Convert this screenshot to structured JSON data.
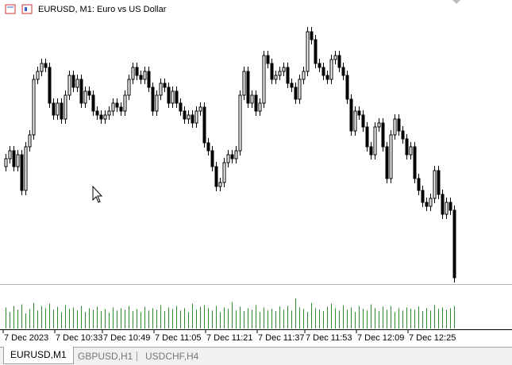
{
  "chart_data": {
    "type": "candlestick",
    "title": "EURUSD, M1:  Euro vs US Dollar",
    "ylim": [
      0,
      340
    ],
    "ohlc": [
      [
        150,
        166,
        144,
        160
      ],
      [
        160,
        176,
        154,
        170
      ],
      [
        170,
        176,
        144,
        150
      ],
      [
        150,
        171,
        144,
        165
      ],
      [
        165,
        171,
        114,
        120
      ],
      [
        120,
        181,
        114,
        175
      ],
      [
        175,
        196,
        169,
        190
      ],
      [
        190,
        266,
        184,
        260
      ],
      [
        260,
        276,
        254,
        270
      ],
      [
        270,
        286,
        264,
        280
      ],
      [
        280,
        286,
        269,
        275
      ],
      [
        275,
        281,
        224,
        230
      ],
      [
        230,
        236,
        209,
        215
      ],
      [
        215,
        236,
        209,
        230
      ],
      [
        230,
        236,
        204,
        210
      ],
      [
        210,
        246,
        204,
        240
      ],
      [
        240,
        271,
        234,
        265
      ],
      [
        265,
        271,
        244,
        250
      ],
      [
        250,
        266,
        244,
        260
      ],
      [
        260,
        266,
        224,
        230
      ],
      [
        230,
        251,
        224,
        245
      ],
      [
        245,
        251,
        234,
        240
      ],
      [
        240,
        246,
        214,
        220
      ],
      [
        220,
        226,
        209,
        215
      ],
      [
        215,
        221,
        204,
        210
      ],
      [
        210,
        221,
        204,
        215
      ],
      [
        215,
        226,
        209,
        220
      ],
      [
        220,
        236,
        214,
        230
      ],
      [
        230,
        236,
        219,
        225
      ],
      [
        225,
        231,
        214,
        220
      ],
      [
        220,
        246,
        214,
        240
      ],
      [
        240,
        266,
        234,
        260
      ],
      [
        260,
        281,
        254,
        275
      ],
      [
        275,
        281,
        259,
        265
      ],
      [
        265,
        271,
        254,
        260
      ],
      [
        260,
        276,
        254,
        270
      ],
      [
        270,
        276,
        244,
        250
      ],
      [
        250,
        256,
        214,
        220
      ],
      [
        220,
        246,
        214,
        240
      ],
      [
        240,
        261,
        234,
        255
      ],
      [
        255,
        261,
        244,
        250
      ],
      [
        250,
        256,
        224,
        230
      ],
      [
        230,
        251,
        224,
        245
      ],
      [
        245,
        251,
        224,
        230
      ],
      [
        230,
        236,
        214,
        220
      ],
      [
        220,
        226,
        204,
        210
      ],
      [
        210,
        221,
        204,
        215
      ],
      [
        215,
        221,
        199,
        205
      ],
      [
        205,
        226,
        199,
        220
      ],
      [
        220,
        231,
        214,
        225
      ],
      [
        225,
        231,
        174,
        180
      ],
      [
        180,
        186,
        164,
        170
      ],
      [
        170,
        176,
        144,
        150
      ],
      [
        150,
        156,
        119,
        125
      ],
      [
        125,
        136,
        119,
        130
      ],
      [
        130,
        161,
        124,
        155
      ],
      [
        155,
        171,
        149,
        165
      ],
      [
        165,
        171,
        154,
        160
      ],
      [
        160,
        176,
        154,
        170
      ],
      [
        170,
        246,
        164,
        240
      ],
      [
        240,
        276,
        234,
        270
      ],
      [
        270,
        276,
        224,
        230
      ],
      [
        230,
        246,
        224,
        240
      ],
      [
        240,
        246,
        214,
        220
      ],
      [
        220,
        236,
        214,
        230
      ],
      [
        230,
        296,
        224,
        290
      ],
      [
        290,
        296,
        274,
        280
      ],
      [
        280,
        286,
        254,
        260
      ],
      [
        260,
        271,
        254,
        265
      ],
      [
        265,
        276,
        259,
        270
      ],
      [
        270,
        281,
        264,
        275
      ],
      [
        275,
        281,
        249,
        255
      ],
      [
        255,
        261,
        244,
        250
      ],
      [
        250,
        256,
        229,
        235
      ],
      [
        235,
        266,
        229,
        260
      ],
      [
        260,
        276,
        254,
        270
      ],
      [
        270,
        326,
        264,
        320
      ],
      [
        320,
        326,
        304,
        310
      ],
      [
        310,
        316,
        274,
        280
      ],
      [
        280,
        286,
        269,
        275
      ],
      [
        275,
        281,
        259,
        265
      ],
      [
        265,
        271,
        254,
        260
      ],
      [
        260,
        291,
        254,
        285
      ],
      [
        285,
        296,
        279,
        290
      ],
      [
        290,
        296,
        269,
        275
      ],
      [
        275,
        281,
        259,
        265
      ],
      [
        265,
        271,
        229,
        235
      ],
      [
        235,
        241,
        189,
        195
      ],
      [
        195,
        226,
        189,
        220
      ],
      [
        220,
        226,
        209,
        215
      ],
      [
        215,
        221,
        194,
        200
      ],
      [
        200,
        206,
        169,
        175
      ],
      [
        175,
        181,
        159,
        165
      ],
      [
        165,
        206,
        159,
        200
      ],
      [
        200,
        211,
        194,
        205
      ],
      [
        205,
        211,
        169,
        175
      ],
      [
        175,
        181,
        129,
        135
      ],
      [
        135,
        196,
        129,
        190
      ],
      [
        190,
        216,
        184,
        210
      ],
      [
        210,
        216,
        189,
        195
      ],
      [
        195,
        201,
        179,
        185
      ],
      [
        185,
        191,
        159,
        165
      ],
      [
        165,
        181,
        159,
        175
      ],
      [
        175,
        181,
        129,
        135
      ],
      [
        135,
        141,
        114,
        120
      ],
      [
        120,
        126,
        99,
        105
      ],
      [
        105,
        111,
        94,
        100
      ],
      [
        100,
        116,
        94,
        110
      ],
      [
        110,
        151,
        104,
        145
      ],
      [
        145,
        151,
        109,
        115
      ],
      [
        115,
        121,
        84,
        90
      ],
      [
        90,
        111,
        84,
        105
      ],
      [
        105,
        111,
        89,
        95
      ],
      [
        95,
        101,
        4,
        10
      ]
    ],
    "volume": {
      "color": "#2e8b2e",
      "ylim": [
        0,
        40
      ],
      "values": [
        28,
        22,
        30,
        25,
        32,
        20,
        26,
        34,
        24,
        30,
        27,
        33,
        25,
        29,
        22,
        31,
        26,
        28,
        24,
        30,
        22,
        27,
        25,
        29,
        23,
        26,
        21,
        28,
        24,
        27,
        25,
        30,
        23,
        26,
        22,
        29,
        24,
        27,
        25,
        31,
        23,
        28,
        26,
        30,
        24,
        27,
        22,
        33,
        25,
        29,
        31,
        27,
        24,
        30,
        22,
        28,
        26,
        35,
        24,
        29,
        23,
        27,
        25,
        31,
        22,
        28,
        24,
        26,
        23,
        29,
        25,
        30,
        24,
        40,
        28,
        26,
        22,
        34,
        27,
        25,
        23,
        29,
        33,
        27,
        24,
        31,
        25,
        28,
        22,
        30,
        26,
        24,
        32,
        27,
        23,
        29,
        25,
        30,
        22,
        27,
        24,
        28,
        26,
        25,
        29,
        23,
        27,
        24,
        31,
        26,
        28,
        25,
        27,
        30
      ]
    },
    "xticks": [
      {
        "value": 0,
        "label": "7 Dec 2023"
      },
      {
        "value": 13,
        "label": "7 Dec 10:33"
      },
      {
        "value": 25,
        "label": "7 Dec 10:49"
      },
      {
        "value": 38,
        "label": "7 Dec 11:05"
      },
      {
        "value": 51,
        "label": "7 Dec 11:21"
      },
      {
        "value": 64,
        "label": "7 Dec 11:37"
      },
      {
        "value": 76,
        "label": "7 Dec 11:53"
      },
      {
        "value": 89,
        "label": "7 Dec 12:09"
      },
      {
        "value": 102,
        "label": "7 Dec 12:25"
      }
    ]
  },
  "tabs": [
    "EURUSD,M1",
    "GBPUSD,H1",
    "USDCHF,H4"
  ]
}
